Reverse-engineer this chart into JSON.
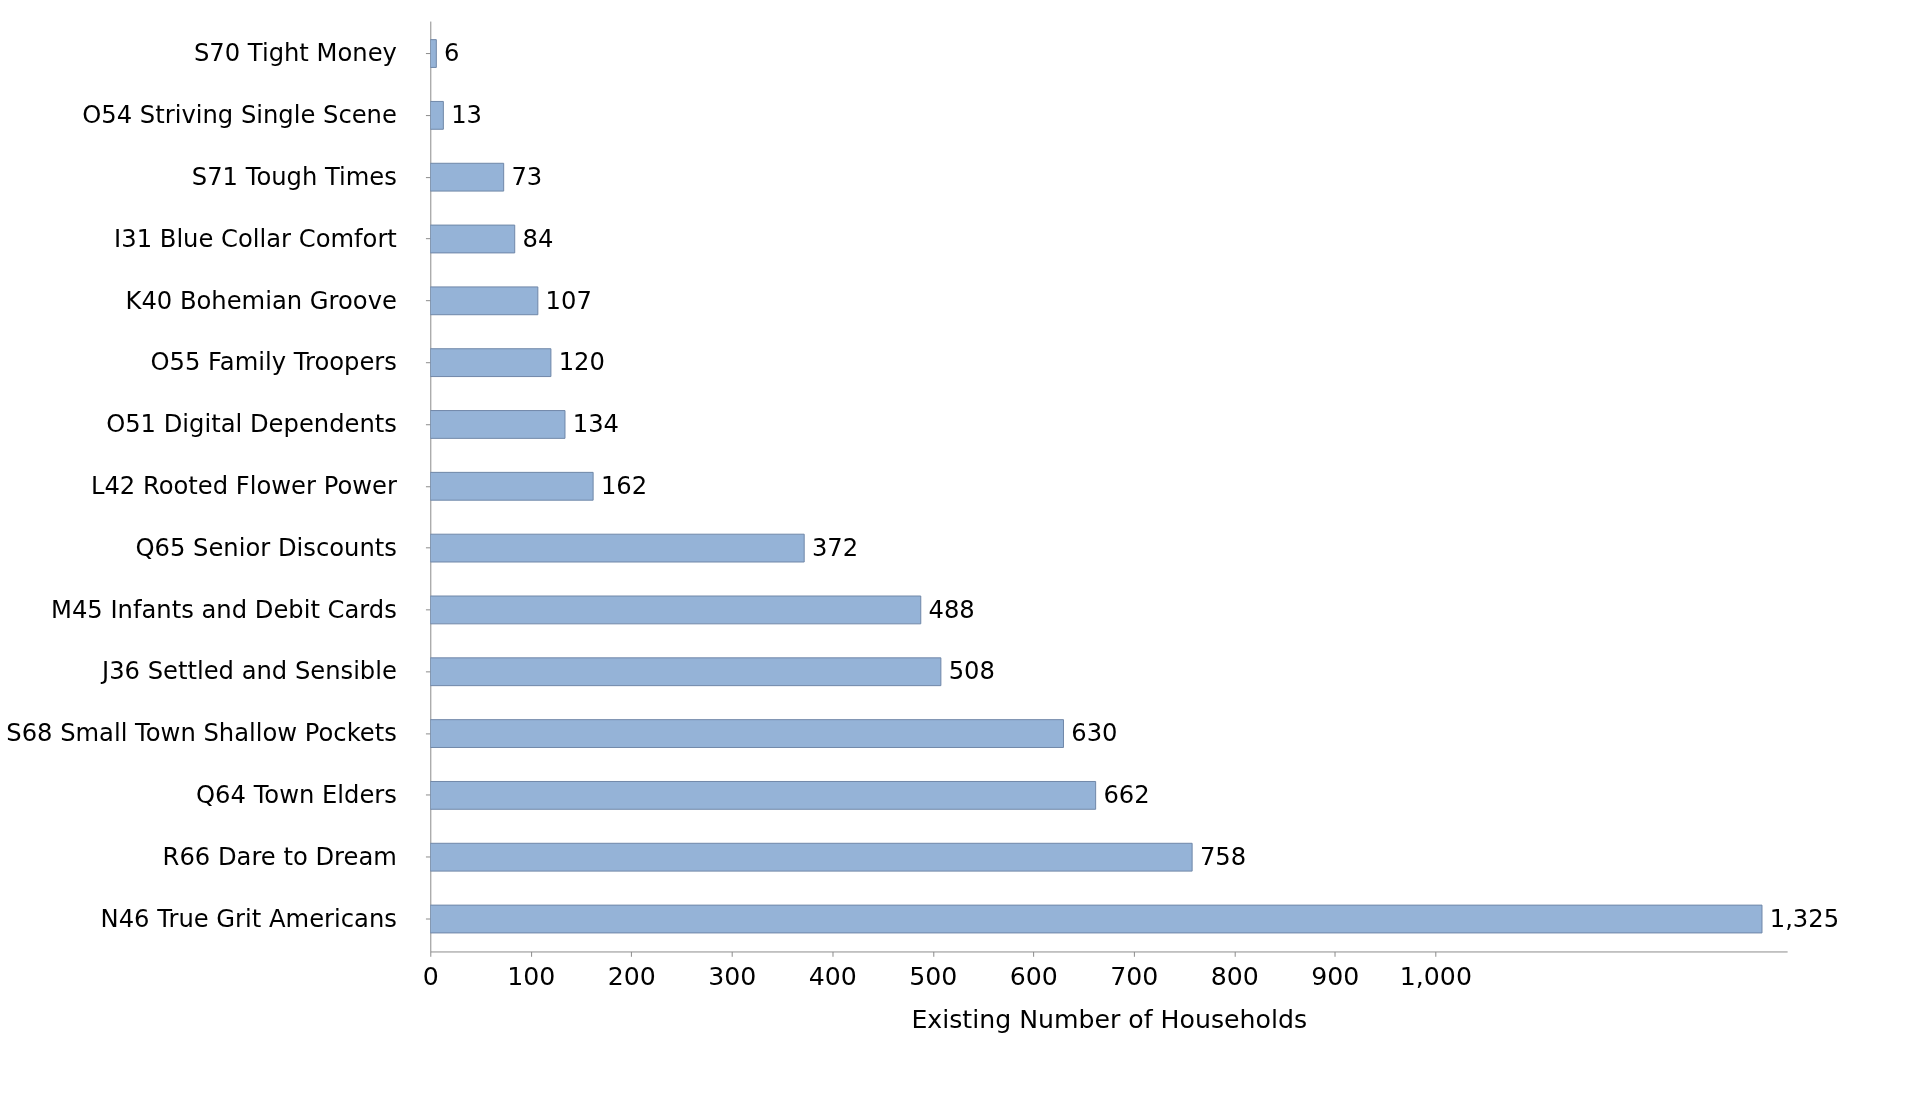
{
  "chart_data": {
    "type": "bar",
    "orientation": "horizontal",
    "xlabel": "Existing Number of Households",
    "categories": [
      "S70 Tight Money",
      "O54 Striving Single Scene",
      "S71 Tough Times",
      "I31 Blue Collar Comfort",
      "K40 Bohemian Groove",
      "O55 Family Troopers",
      "O51 Digital Dependents",
      "L42 Rooted Flower Power",
      "Q65 Senior Discounts",
      "M45 Infants and Debit Cards",
      "J36 Settled and Sensible",
      "S68 Small Town Shallow Pockets",
      "Q64 Town Elders",
      "R66 Dare to Dream",
      "N46 True Grit Americans"
    ],
    "values": [
      6,
      13,
      73,
      84,
      107,
      120,
      134,
      162,
      372,
      488,
      508,
      630,
      662,
      758,
      1325
    ],
    "value_labels": [
      "6",
      "13",
      "73",
      "84",
      "107",
      "120",
      "134",
      "162",
      "372",
      "488",
      "508",
      "630",
      "662",
      "758",
      "1,325"
    ],
    "color": "#95b3d7",
    "xlim": [
      0,
      1350
    ],
    "xticks": [
      0,
      100,
      200,
      300,
      400,
      500,
      600,
      700,
      800,
      900,
      {
        "value": 1000,
        "label": "1,000"
      }
    ],
    "grid": false
  }
}
